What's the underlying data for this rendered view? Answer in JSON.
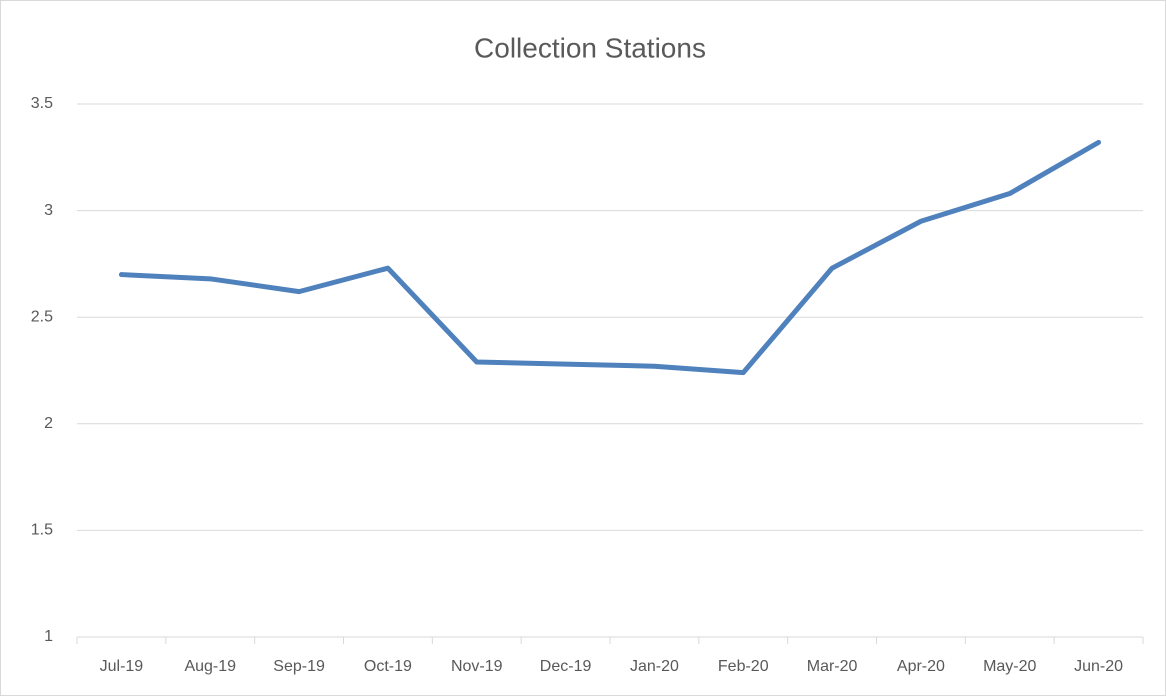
{
  "chart_data": {
    "type": "line",
    "title": "Collection Stations",
    "categories": [
      "Jul-19",
      "Aug-19",
      "Sep-19",
      "Oct-19",
      "Nov-19",
      "Dec-19",
      "Jan-20",
      "Feb-20",
      "Mar-20",
      "Apr-20",
      "May-20",
      "Jun-20"
    ],
    "series": [
      {
        "name": "Collection Stations",
        "color": "#4f81bd",
        "values": [
          2.7,
          2.68,
          2.62,
          2.73,
          2.29,
          2.28,
          2.27,
          2.24,
          2.73,
          2.95,
          3.08,
          3.32
        ]
      }
    ],
    "ylim": [
      1,
      3.5
    ],
    "yticks": [
      1,
      1.5,
      2,
      2.5,
      3,
      3.5
    ],
    "grid": true
  }
}
